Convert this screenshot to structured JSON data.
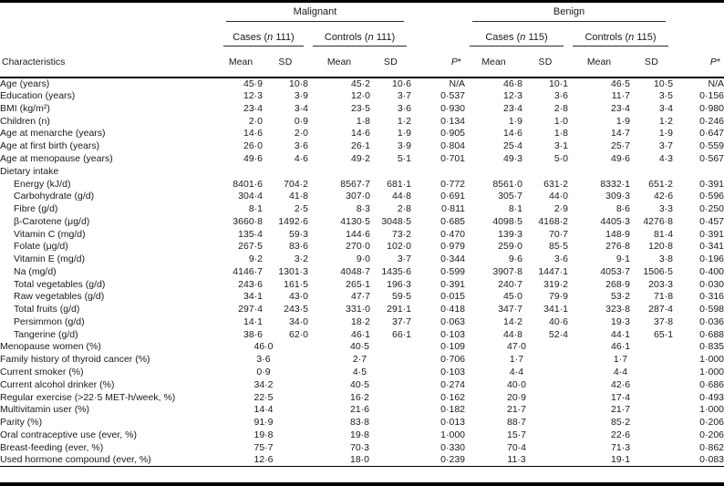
{
  "header": {
    "characteristics": "Characteristics",
    "malignant": "Malignant",
    "benign": "Benign",
    "cases_prefix": "Cases (",
    "controls_prefix": "Controls (",
    "n": "n",
    "count_malignant": " 111)",
    "count_benign": " 115)",
    "mean": "Mean",
    "sd": "SD",
    "p": "P",
    "p_star": "*"
  },
  "colors": {
    "text": "#1a1a1a",
    "rule": "#000000",
    "background": "#ffffff"
  },
  "table": {
    "column_groups": [
      "Malignant",
      "Benign"
    ],
    "subgroups": [
      "Cases (n 111)",
      "Controls (n 111)",
      "Cases (n 115)",
      "Controls (n 115)"
    ],
    "value_columns": [
      "Mean",
      "SD",
      "Mean",
      "SD",
      "P*",
      "Mean",
      "SD",
      "Mean",
      "SD",
      "P*"
    ],
    "rows": [
      {
        "label": "Age (years)",
        "type": "data",
        "indent": false,
        "values": [
          "45·9",
          "10·8",
          "45·2",
          "10·6",
          "N/A",
          "46·8",
          "10·1",
          "46·5",
          "10·5",
          "N/A"
        ]
      },
      {
        "label": "Education (years)",
        "type": "data",
        "indent": false,
        "values": [
          "12·3",
          "3·9",
          "12·0",
          "3·7",
          "0·537",
          "12·3",
          "3·6",
          "11·7",
          "3·5",
          "0·156"
        ]
      },
      {
        "label": "BMI (kg/m²)",
        "type": "data",
        "indent": false,
        "values": [
          "23·4",
          "3·4",
          "23·5",
          "3·6",
          "0·930",
          "23·4",
          "2·8",
          "23·4",
          "3·4",
          "0·980"
        ]
      },
      {
        "label": "Children (n)",
        "type": "data",
        "indent": false,
        "values": [
          "2·0",
          "0·9",
          "1·8",
          "1·2",
          "0·134",
          "1·9",
          "1·0",
          "1·9",
          "1·2",
          "0·246"
        ]
      },
      {
        "label": "Age at menarche (years)",
        "type": "data",
        "indent": false,
        "values": [
          "14·6",
          "2·0",
          "14·6",
          "1·9",
          "0·905",
          "14·6",
          "1·8",
          "14·7",
          "1·9",
          "0·647"
        ]
      },
      {
        "label": "Age at first birth (years)",
        "type": "data",
        "indent": false,
        "values": [
          "26·0",
          "3·6",
          "26·1",
          "3·9",
          "0·804",
          "25·4",
          "3·1",
          "25·7",
          "3·7",
          "0·559"
        ]
      },
      {
        "label": "Age at menopause (years)",
        "type": "data",
        "indent": false,
        "values": [
          "49·6",
          "4·6",
          "49·2",
          "5·1",
          "0·701",
          "49·3",
          "5·0",
          "49·6",
          "4·3",
          "0·567"
        ]
      },
      {
        "label": "Dietary intake",
        "type": "section",
        "indent": false,
        "values": []
      },
      {
        "label": "Energy (kJ/d)",
        "type": "data",
        "indent": true,
        "values": [
          "8401·6",
          "704·2",
          "8567·7",
          "681·1",
          "0·772",
          "8561·0",
          "631·2",
          "8332·1",
          "651·2",
          "0·391"
        ]
      },
      {
        "label": "Carbohydrate (g/d)",
        "type": "data",
        "indent": true,
        "values": [
          "304·4",
          "41·8",
          "307·0",
          "44·8",
          "0·691",
          "305·7",
          "44·0",
          "309·3",
          "42·6",
          "0·596"
        ]
      },
      {
        "label": "Fibre (g/d)",
        "type": "data",
        "indent": true,
        "values": [
          "8·1",
          "2·5",
          "8·3",
          "2·8",
          "0·811",
          "8·1",
          "2·9",
          "8·6",
          "3·3",
          "0·250"
        ]
      },
      {
        "label": "β-Carotene (μg/d)",
        "type": "data",
        "indent": true,
        "values": [
          "3660·8",
          "1492·6",
          "4130·5",
          "3048·5",
          "0·685",
          "4098·5",
          "4168·2",
          "4405·3",
          "4276·8",
          "0·457"
        ]
      },
      {
        "label": "Vitamin C (mg/d)",
        "type": "data",
        "indent": true,
        "values": [
          "135·4",
          "59·3",
          "144·6",
          "73·2",
          "0·470",
          "139·3",
          "70·7",
          "148·9",
          "81·4",
          "0·391"
        ]
      },
      {
        "label": "Folate (μg/d)",
        "type": "data",
        "indent": true,
        "values": [
          "267·5",
          "83·6",
          "270·0",
          "102·0",
          "0·979",
          "259·0",
          "85·5",
          "276·8",
          "120·8",
          "0·341"
        ]
      },
      {
        "label": "Vitamin E (mg/d)",
        "type": "data",
        "indent": true,
        "values": [
          "9·2",
          "3·2",
          "9·0",
          "3·7",
          "0·344",
          "9·6",
          "3·6",
          "9·1",
          "3·8",
          "0·196"
        ]
      },
      {
        "label": "Na (mg/d)",
        "type": "data",
        "indent": true,
        "values": [
          "4146·7",
          "1301·3",
          "4048·7",
          "1435·6",
          "0·599",
          "3907·8",
          "1447·1",
          "4053·7",
          "1506·5",
          "0·400"
        ]
      },
      {
        "label": "Total vegetables (g/d)",
        "type": "data",
        "indent": true,
        "values": [
          "243·6",
          "161·5",
          "265·1",
          "196·3",
          "0·391",
          "240·7",
          "319·2",
          "268·9",
          "203·3",
          "0·030"
        ]
      },
      {
        "label": "Raw vegetables (g/d)",
        "type": "data",
        "indent": true,
        "values": [
          "34·1",
          "43·0",
          "47·7",
          "59·5",
          "0·015",
          "45·0",
          "79·9",
          "53·2",
          "71·8",
          "0·316"
        ]
      },
      {
        "label": "Total fruits (g/d)",
        "type": "data",
        "indent": true,
        "values": [
          "297·4",
          "243·5",
          "331·0",
          "291·1",
          "0·418",
          "347·7",
          "341·1",
          "323·8",
          "287·4",
          "0·598"
        ]
      },
      {
        "label": "Persimmon (g/d)",
        "type": "data",
        "indent": true,
        "values": [
          "14·1",
          "34·0",
          "18·2",
          "37·7",
          "0·063",
          "14·2",
          "40·6",
          "19·3",
          "37·8",
          "0·036"
        ]
      },
      {
        "label": "Tangerine (g/d)",
        "type": "data",
        "indent": true,
        "values": [
          "38·6",
          "62·0",
          "46·1",
          "66·1",
          "0·103",
          "44·8",
          "52·4",
          "44·1",
          "65·1",
          "0·688"
        ]
      },
      {
        "label": "Menopause women (%)",
        "type": "pct",
        "indent": false,
        "values": [
          "46·0",
          "40·5",
          "0·109",
          "47·0",
          "46·1",
          "0·835"
        ]
      },
      {
        "label": "Family history of thyroid cancer (%)",
        "type": "pct",
        "indent": false,
        "values": [
          "3·6",
          "2·7",
          "0·706",
          "1·7",
          "1·7",
          "1·000"
        ]
      },
      {
        "label": "Current smoker (%)",
        "type": "pct",
        "indent": false,
        "values": [
          "0·9",
          "4·5",
          "0·103",
          "4·4",
          "4·4",
          "1·000"
        ]
      },
      {
        "label": "Current alcohol drinker (%)",
        "type": "pct",
        "indent": false,
        "values": [
          "34·2",
          "40·5",
          "0·274",
          "40·0",
          "42·6",
          "0·686"
        ]
      },
      {
        "label": "Regular exercise (>22·5 MET-h/week, %)",
        "type": "pct",
        "indent": false,
        "values": [
          "22·5",
          "16·2",
          "0·162",
          "20·9",
          "17·4",
          "0·493"
        ]
      },
      {
        "label": "Multivitamin user (%)",
        "type": "pct",
        "indent": false,
        "values": [
          "14·4",
          "21·6",
          "0·182",
          "21·7",
          "21·7",
          "1·000"
        ]
      },
      {
        "label": "Parity (%)",
        "type": "pct",
        "indent": false,
        "values": [
          "91·9",
          "83·8",
          "0·013",
          "88·7",
          "85·2",
          "0·206"
        ]
      },
      {
        "label": "Oral contraceptive use (ever, %)",
        "type": "pct",
        "indent": false,
        "values": [
          "19·8",
          "19·8",
          "1·000",
          "15·7",
          "22·6",
          "0·206"
        ]
      },
      {
        "label": "Breast-feeding (ever, %)",
        "type": "pct",
        "indent": false,
        "values": [
          "75·7",
          "70·3",
          "0·330",
          "70·4",
          "71·3",
          "0·862"
        ]
      },
      {
        "label": "Used hormone compound (ever, %)",
        "type": "pct",
        "indent": false,
        "values": [
          "12·6",
          "18·0",
          "0·239",
          "11·3",
          "19·1",
          "0·083"
        ]
      }
    ]
  }
}
